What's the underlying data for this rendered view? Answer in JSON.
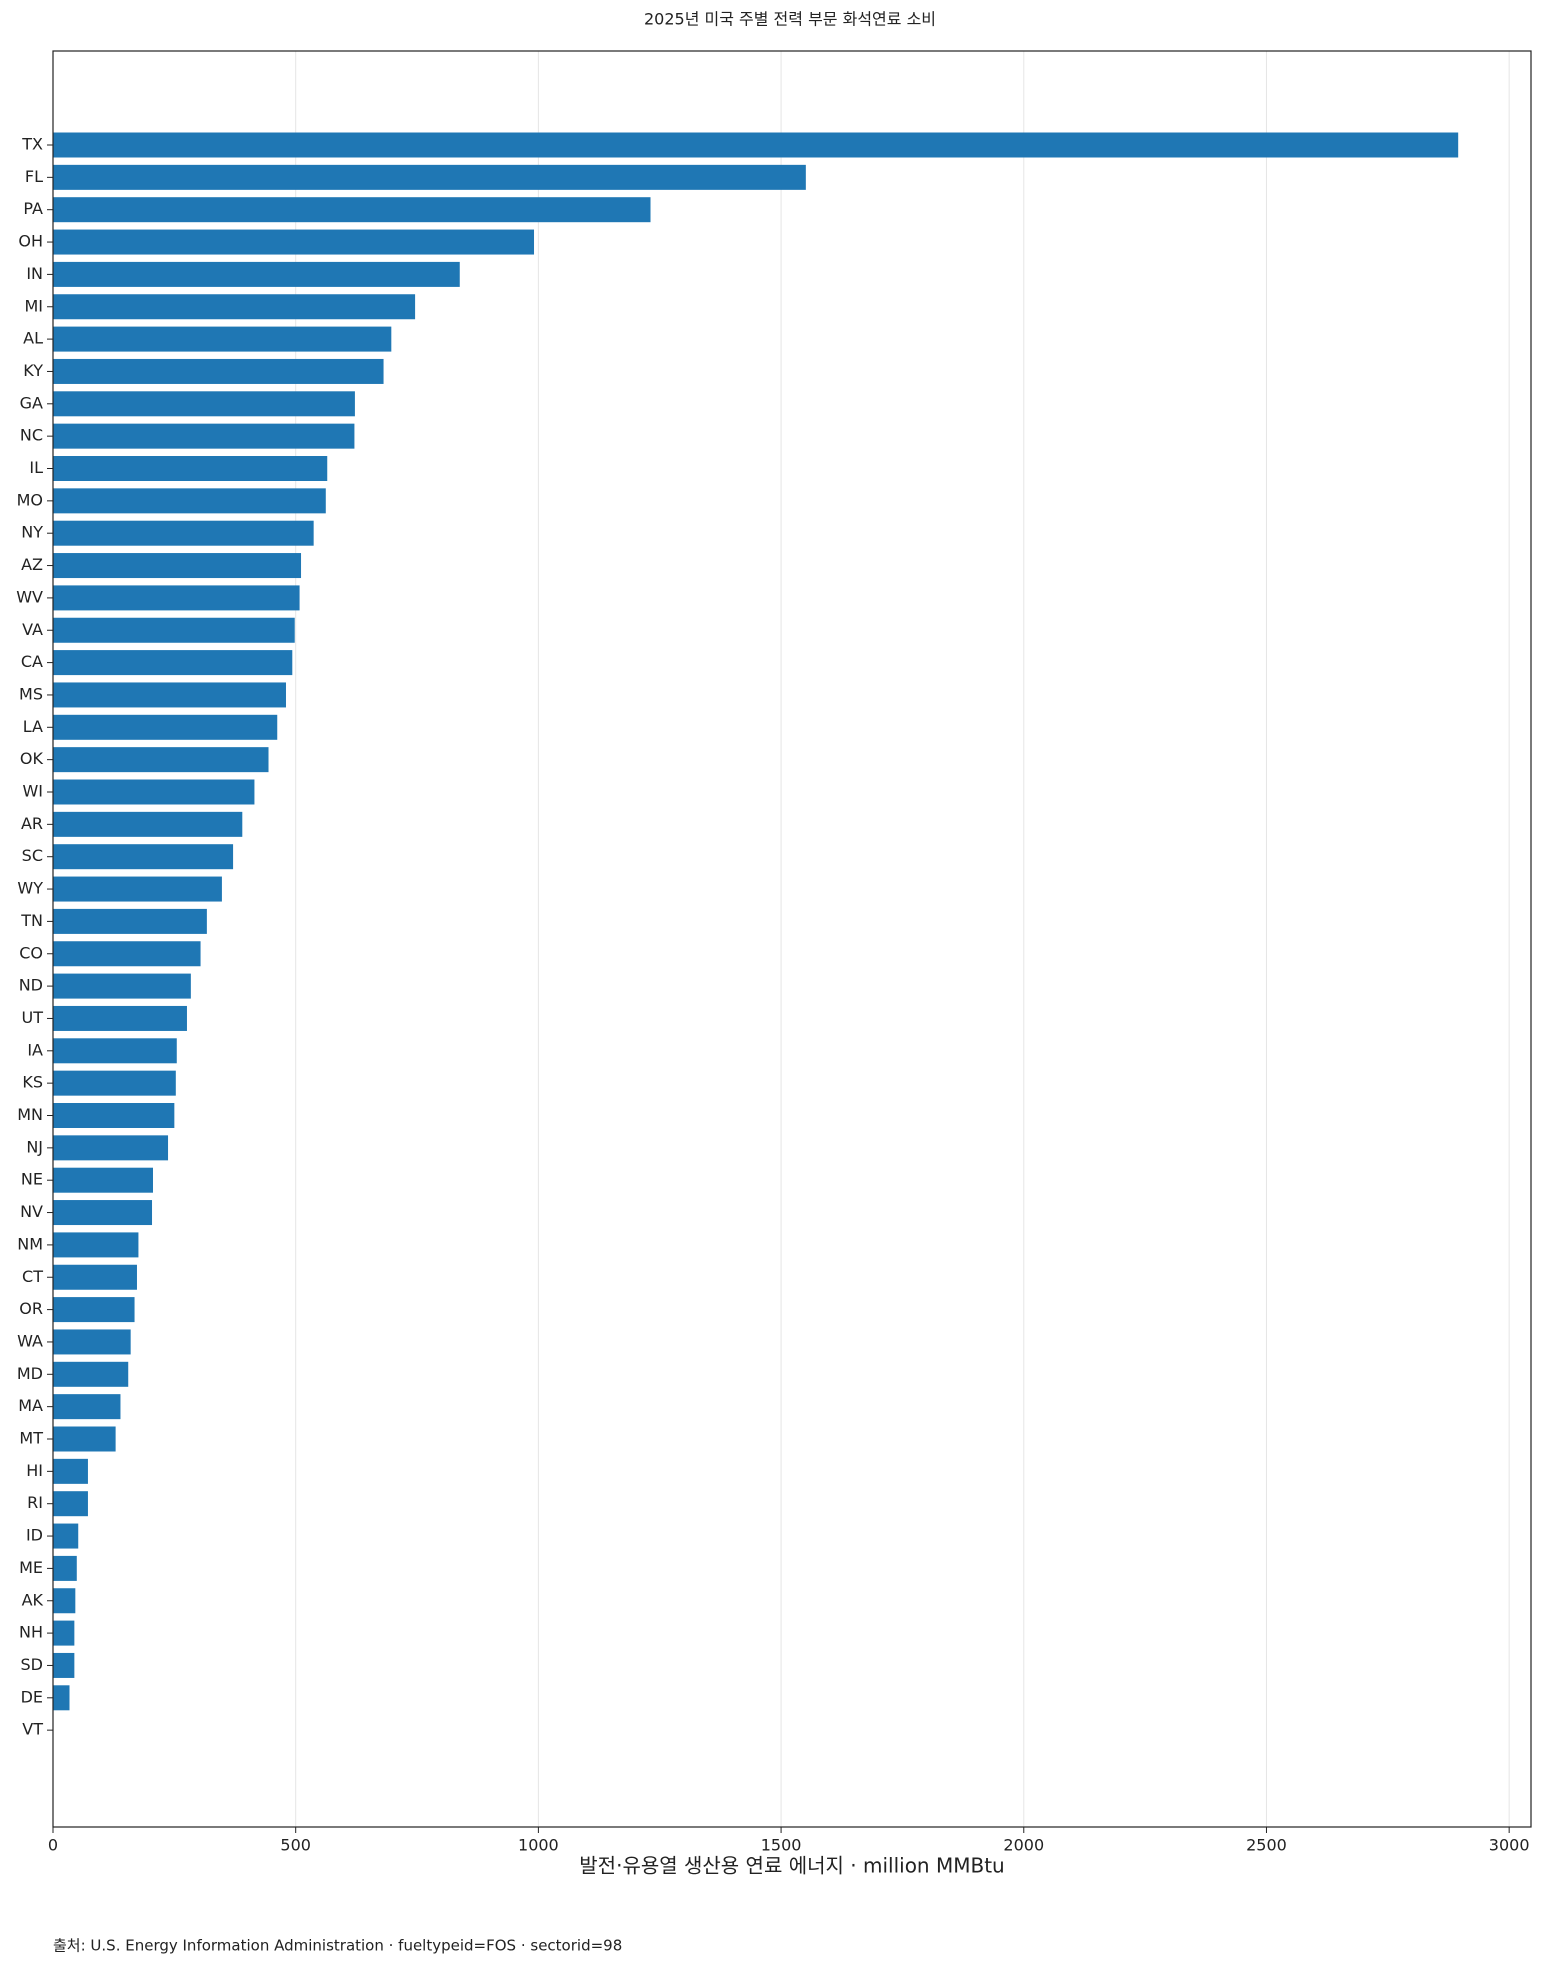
{
  "chart_data": {
    "type": "barh",
    "title": "2025년 미국 주별 전력 부문 화석연료 소비",
    "x_label": "발전·유용열 생산용 연료 에너지 · million MMBtu",
    "source": "출처: U.S. Energy Information Administration · fueltypeid=FOS · sectorid=98",
    "categories": [
      "TX",
      "FL",
      "PA",
      "OH",
      "IN",
      "MI",
      "AL",
      "KY",
      "GA",
      "NC",
      "IL",
      "MO",
      "NY",
      "AZ",
      "WV",
      "VA",
      "CA",
      "MS",
      "LA",
      "OK",
      "WI",
      "AR",
      "SC",
      "WY",
      "TN",
      "CO",
      "ND",
      "UT",
      "IA",
      "KS",
      "MN",
      "NJ",
      "NE",
      "NV",
      "NM",
      "CT",
      "OR",
      "WA",
      "MD",
      "MA",
      "MT",
      "HI",
      "RI",
      "ID",
      "ME",
      "AK",
      "NH",
      "SD",
      "DE",
      "VT"
    ],
    "values": [
      2895,
      1551,
      1231,
      991,
      838,
      746,
      697,
      681,
      622,
      621,
      565,
      562,
      537,
      511,
      508,
      498,
      493,
      480,
      462,
      444,
      415,
      390,
      371,
      348,
      317,
      304,
      284,
      276,
      255,
      253,
      250,
      237,
      206,
      204,
      176,
      173,
      168,
      160,
      155,
      139,
      129,
      72,
      72,
      52,
      49,
      46,
      44,
      44,
      34,
      0
    ],
    "color": "#1f77b4",
    "xlim": [
      0,
      3045
    ],
    "xticks": [
      0,
      500,
      1000,
      1500,
      2000,
      2500,
      3000
    ],
    "grid": true
  }
}
